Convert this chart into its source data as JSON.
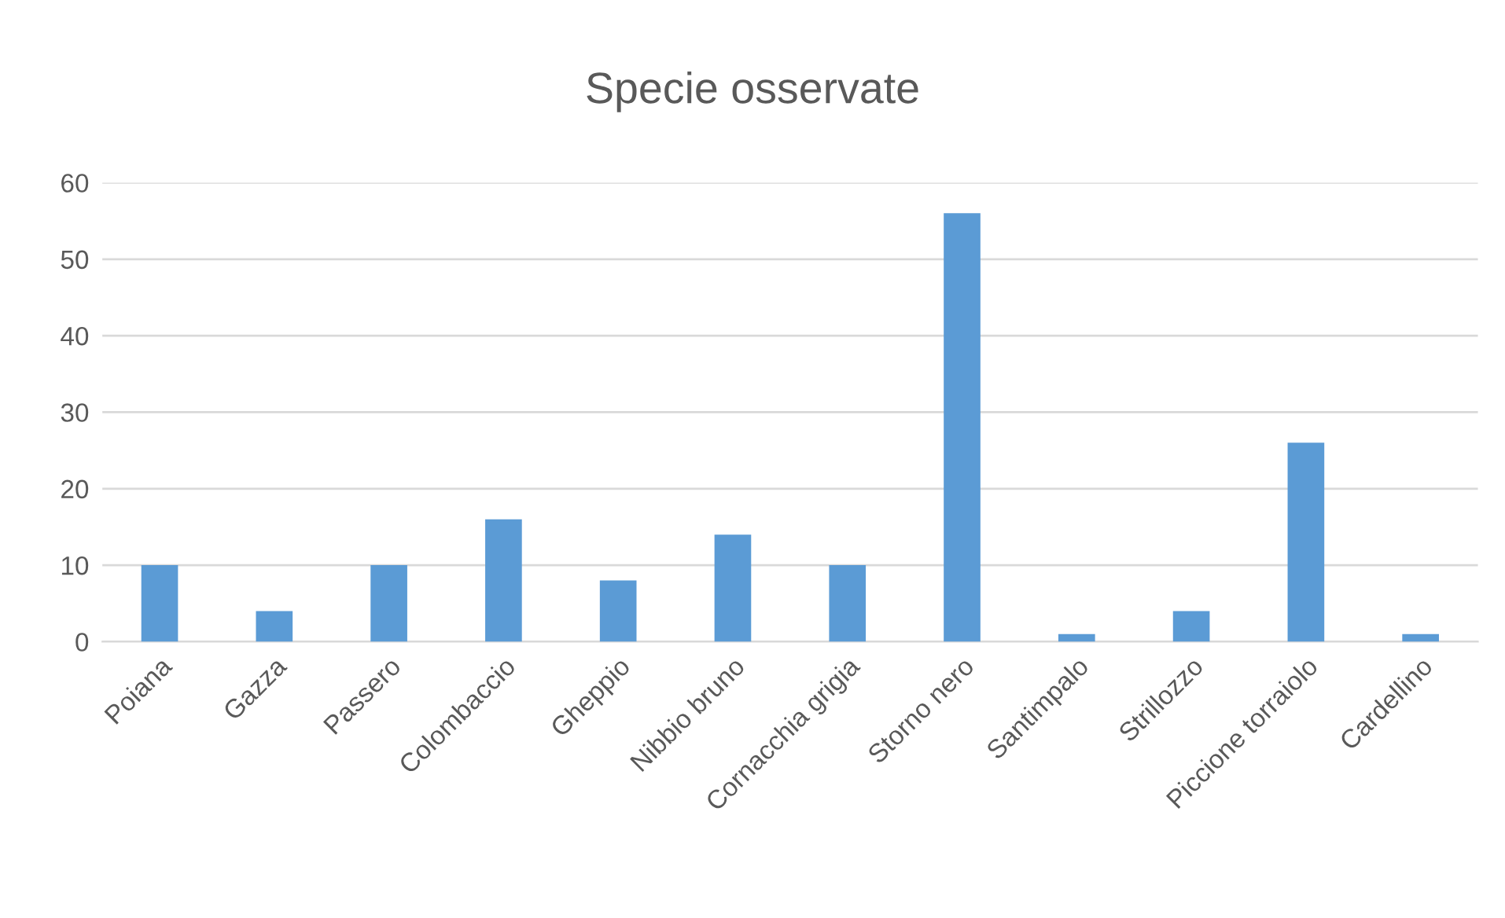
{
  "chart_data": {
    "type": "bar",
    "title": "Specie osservate",
    "categories": [
      "Poiana",
      "Gazza",
      "Passero",
      "Colombaccio",
      "Gheppio",
      "Nibbio bruno",
      "Cornacchia grigia",
      "Storno nero",
      "Santimpalo",
      "Strillozzo",
      "Piccione torraiolo",
      "Cardellino"
    ],
    "values": [
      10,
      4,
      10,
      16,
      8,
      14,
      10,
      56,
      1,
      4,
      26,
      1
    ],
    "color": "#5b9bd5",
    "ylim": [
      0,
      60
    ],
    "yticks": [
      0,
      10,
      20,
      30,
      40,
      50,
      60
    ],
    "grid": "y"
  }
}
